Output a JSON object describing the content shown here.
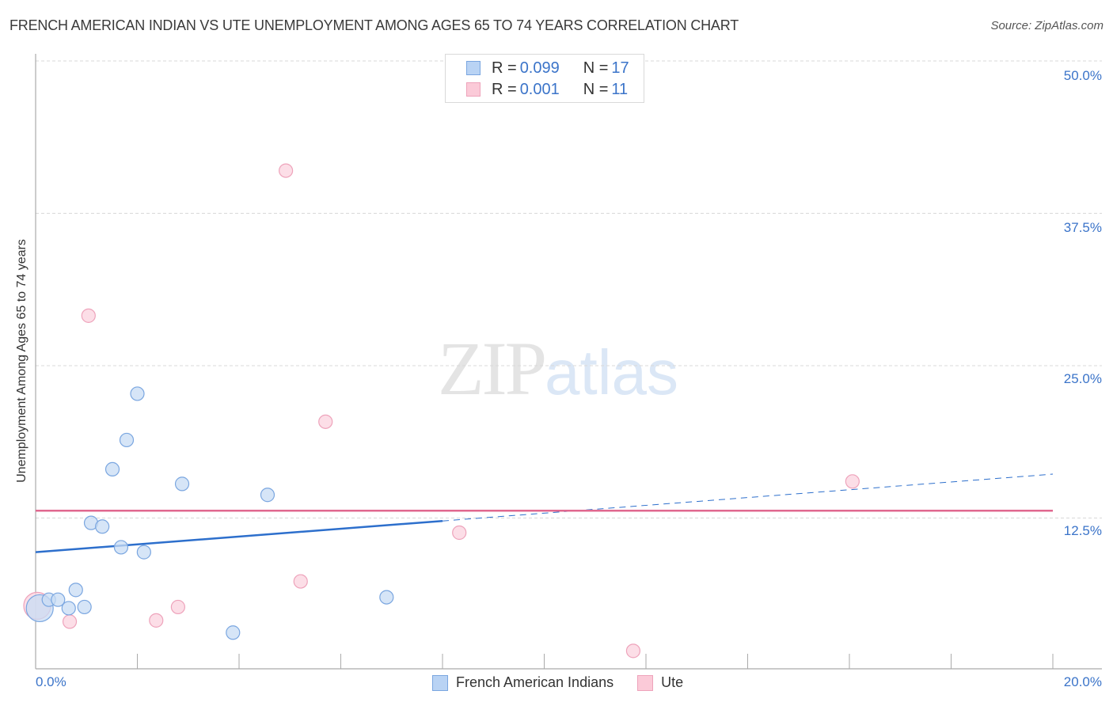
{
  "header": {
    "title": "FRENCH AMERICAN INDIAN VS UTE UNEMPLOYMENT AMONG AGES 65 TO 74 YEARS CORRELATION CHART",
    "source": "Source: ZipAtlas.com"
  },
  "legend": {
    "rows": [
      {
        "r_label": "R = ",
        "r_value": "0.099",
        "n_label": "N = ",
        "n_value": "17",
        "color": "#aecbf0"
      },
      {
        "r_label": "R = ",
        "r_value": "0.001",
        "n_label": "N = ",
        "n_value": "11",
        "color": "#f9bfd0"
      }
    ]
  },
  "bottom_legend": {
    "items": [
      {
        "label": "French American Indians",
        "color": "#aecbf0"
      },
      {
        "label": "Ute",
        "color": "#f9bfd0"
      }
    ]
  },
  "axes": {
    "ylabel": "Unemployment Among Ages 65 to 74 years",
    "yticks": [
      "50.0%",
      "37.5%",
      "25.0%",
      "12.5%"
    ],
    "xticks": [
      "0.0%",
      "20.0%"
    ]
  },
  "watermark": {
    "zip": "ZIP",
    "atlas": "atlas"
  },
  "colors": {
    "blue_fill": "#c8dcf4",
    "blue_stroke": "#7aa6e0",
    "blue_line": "#2d6fcc",
    "pink_fill": "#fbd3df",
    "pink_stroke": "#eea3bb",
    "pink_line": "#e0688f",
    "tick_text": "#3b74c9"
  },
  "chart_data": {
    "type": "scatter",
    "title": "FRENCH AMERICAN INDIAN VS UTE UNEMPLOYMENT AMONG AGES 65 TO 74 YEARS CORRELATION CHART",
    "xlabel": "",
    "ylabel": "Unemployment Among Ages 65 to 74 years",
    "xlim": [
      0,
      20
    ],
    "ylim": [
      0,
      52
    ],
    "x_tick_labels": [
      "0.0%",
      "20.0%"
    ],
    "y_tick_labels": [
      "12.5%",
      "25.0%",
      "37.5%",
      "50.0%"
    ],
    "grid": true,
    "legend_position": "top-center and bottom",
    "series": [
      {
        "name": "French American Indians",
        "R": 0.099,
        "N": 17,
        "points": [
          {
            "x": 0.05,
            "y": 5.1,
            "size": "large"
          },
          {
            "x": 0.26,
            "y": 5.8
          },
          {
            "x": 0.44,
            "y": 5.8
          },
          {
            "x": 0.65,
            "y": 5.1
          },
          {
            "x": 0.79,
            "y": 6.6
          },
          {
            "x": 0.96,
            "y": 5.2
          },
          {
            "x": 1.09,
            "y": 12.1
          },
          {
            "x": 1.31,
            "y": 11.8
          },
          {
            "x": 1.51,
            "y": 16.5
          },
          {
            "x": 1.68,
            "y": 10.1
          },
          {
            "x": 1.79,
            "y": 18.9
          },
          {
            "x": 2.0,
            "y": 22.7
          },
          {
            "x": 2.13,
            "y": 9.7
          },
          {
            "x": 2.88,
            "y": 15.3
          },
          {
            "x": 3.88,
            "y": 3.1
          },
          {
            "x": 4.56,
            "y": 14.4
          },
          {
            "x": 6.9,
            "y": 6.0
          }
        ],
        "trend": {
          "x0": 0,
          "y0": 9.7,
          "x1": 20,
          "y1": 16.1,
          "solid_until_x": 8.0
        }
      },
      {
        "name": "Ute",
        "R": 0.001,
        "N": 11,
        "points": [
          {
            "x": 0.0,
            "y": 5.3,
            "size": "large"
          },
          {
            "x": 0.67,
            "y": 4.0
          },
          {
            "x": 1.04,
            "y": 29.1
          },
          {
            "x": 2.37,
            "y": 4.1
          },
          {
            "x": 2.8,
            "y": 5.2
          },
          {
            "x": 4.92,
            "y": 41.0
          },
          {
            "x": 5.21,
            "y": 7.3
          },
          {
            "x": 5.7,
            "y": 20.4
          },
          {
            "x": 8.33,
            "y": 11.3
          },
          {
            "x": 11.75,
            "y": 1.6
          },
          {
            "x": 16.06,
            "y": 15.5
          }
        ],
        "trend": {
          "x0": 0,
          "y0": 13.1,
          "x1": 20,
          "y1": 13.1
        }
      }
    ]
  }
}
